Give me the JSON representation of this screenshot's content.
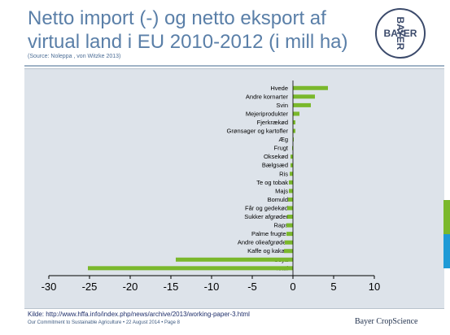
{
  "slide": {
    "title": "Netto import (-) og netto eksport af virtual land i EU 2010-2012 (i mill ha)",
    "source_note": "(Source: Noleppa , von Witzke  2013)",
    "footer_source": "Kilde: http://www.hffa.info/index.php/news/archive/2013/working-paper-3.html",
    "footer_small": "Our Commitment to Sustainable Agriculture • 22 August 2014 • Page 8",
    "brand": "Bayer CropScience",
    "logo_text": "BAYER",
    "colors": {
      "title": "#5a7fa8",
      "bar": "#7ab82c",
      "plot_bg": "#dde3ea",
      "accent_green": "#7ab82c",
      "accent_blue": "#1e9ad6"
    }
  },
  "chart_data": {
    "type": "bar",
    "orientation": "horizontal",
    "categories": [
      "Hvede",
      "Andre kornarter",
      "Svin",
      "Mejeriprodukter",
      "Fjerkrækød",
      "Grønsager og kartofler",
      "Æg",
      "Frugt",
      "Oksekød",
      "Bælgsæd",
      "Ris",
      "Te og tobak",
      "Majs",
      "Bomuld",
      "Får og gedekød",
      "Sukker afgrøder",
      "Raps",
      "Palme frugter",
      "Andre olieafgrøder",
      "Kaffe og kakao",
      "Soya",
      "Total"
    ],
    "values": [
      4.3,
      2.7,
      2.2,
      0.8,
      0.3,
      0.3,
      0.05,
      -0.1,
      -0.3,
      -0.3,
      -0.4,
      -0.5,
      -0.5,
      -0.6,
      -0.7,
      -0.7,
      -0.8,
      -0.8,
      -1.0,
      -1.1,
      -14.4,
      -25.2
    ],
    "xlim": [
      -30,
      10
    ],
    "xticks": [
      "-30",
      "-25",
      "-20",
      "-15",
      "-10",
      "-5",
      "0",
      "5",
      "10"
    ],
    "grid": false,
    "legend": "none"
  }
}
